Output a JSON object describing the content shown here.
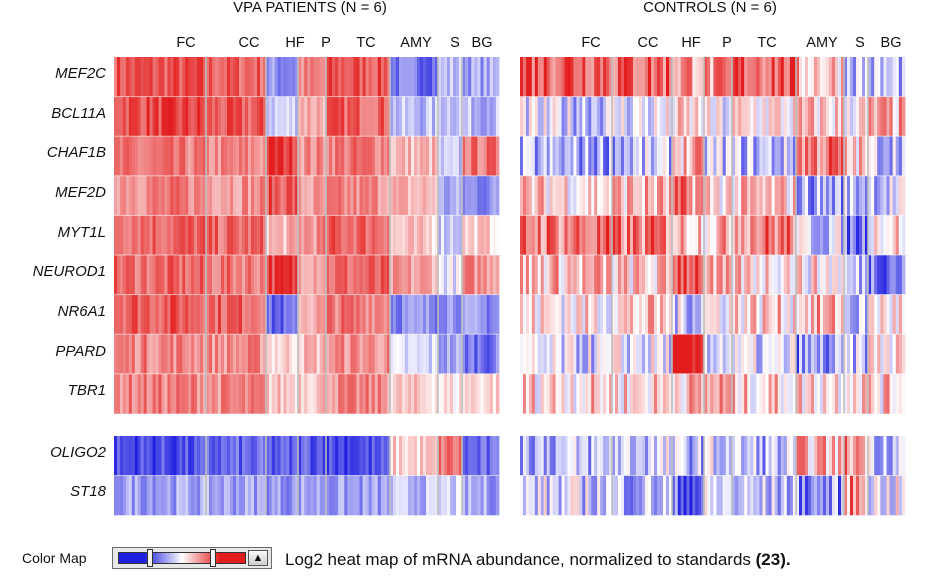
{
  "chart_data": {
    "type": "heatmap",
    "caption": "Log2 heat map of mRNA abundance, normalized to standards",
    "caption_ref": "(23).",
    "color_map_label": "Color Map",
    "color_low": "#1f1fe0",
    "color_mid": "#ffffff",
    "color_high": "#e31d1d",
    "regions": [
      "FC",
      "CC",
      "HF",
      "P",
      "TC",
      "AMY",
      "S",
      "BG"
    ],
    "genes_upper": [
      "MEF2C",
      "BCL11A",
      "CHAF1B",
      "MEF2D",
      "MYT1L",
      "NEUROD1",
      "NR6A1",
      "PPARD",
      "TBR1"
    ],
    "genes_lower": [
      "OLIGO2",
      "ST18"
    ],
    "panels": [
      {
        "title": "VPA PATIENTS (N = 6)",
        "values": {
          "MEF2C": [
            0.75,
            0.7,
            -0.5,
            0.5,
            0.75,
            -0.6,
            -0.3,
            -0.4
          ],
          "BCL11A": [
            0.8,
            0.7,
            -0.2,
            0.4,
            0.7,
            -0.3,
            -0.2,
            -0.3
          ],
          "CHAF1B": [
            0.55,
            0.5,
            0.9,
            0.5,
            0.6,
            0.3,
            -0.3,
            0.6
          ],
          "MEF2D": [
            0.55,
            0.5,
            0.75,
            0.4,
            0.5,
            0.3,
            -0.4,
            -0.5
          ],
          "MYT1L": [
            0.7,
            0.65,
            0.3,
            0.5,
            0.7,
            0.2,
            -0.2,
            0.2
          ],
          "NEUROD1": [
            0.65,
            0.6,
            0.85,
            0.5,
            0.65,
            0.4,
            -0.1,
            0.5
          ],
          "NR6A1": [
            0.75,
            0.7,
            -0.7,
            0.4,
            0.6,
            -0.5,
            -0.4,
            -0.5
          ],
          "PPARD": [
            0.55,
            0.5,
            0.2,
            0.3,
            0.5,
            -0.2,
            -0.4,
            -0.6
          ],
          "TBR1": [
            0.55,
            0.5,
            0.25,
            0.3,
            0.5,
            0.2,
            0.1,
            0.2
          ],
          "OLIGO2": [
            -0.8,
            -0.7,
            -0.75,
            -0.7,
            -0.8,
            0.2,
            0.6,
            -0.7
          ],
          "ST18": [
            -0.4,
            -0.4,
            -0.45,
            -0.4,
            -0.45,
            -0.3,
            -0.2,
            -0.4
          ]
        }
      },
      {
        "title": "CONTROLS (N = 6)",
        "values": {
          "MEF2C": [
            0.8,
            0.7,
            0.5,
            0.4,
            0.75,
            0.3,
            -0.2,
            -0.3
          ],
          "BCL11A": [
            -0.2,
            -0.1,
            0.1,
            -0.1,
            0.1,
            0.2,
            0.1,
            0.3
          ],
          "CHAF1B": [
            -0.4,
            -0.3,
            0.3,
            -0.2,
            -0.3,
            0.6,
            0.2,
            -0.2
          ],
          "MEF2D": [
            0.2,
            0.3,
            0.5,
            0.2,
            0.2,
            -0.4,
            -0.3,
            -0.2
          ],
          "MYT1L": [
            0.6,
            0.55,
            0.35,
            0.3,
            0.6,
            -0.2,
            -0.6,
            0.2
          ],
          "NEUROD1": [
            0.3,
            0.2,
            0.85,
            0.2,
            0.2,
            0.1,
            -0.3,
            -0.5
          ],
          "NR6A1": [
            0.1,
            0.2,
            -0.2,
            0.1,
            0.2,
            0.3,
            -0.3,
            0.1
          ],
          "PPARD": [
            -0.2,
            -0.1,
            1.0,
            -0.1,
            -0.2,
            -0.5,
            -0.3,
            0.1
          ],
          "TBR1": [
            0.2,
            0.2,
            0.3,
            0.4,
            0.2,
            0.2,
            0.3,
            0.2
          ],
          "OLIGO2": [
            -0.3,
            -0.2,
            -0.3,
            -0.2,
            -0.3,
            0.3,
            0.5,
            -0.2
          ],
          "ST18": [
            -0.2,
            -0.3,
            -0.7,
            -0.2,
            -0.3,
            -0.5,
            0.5,
            -0.1
          ]
        }
      }
    ]
  }
}
